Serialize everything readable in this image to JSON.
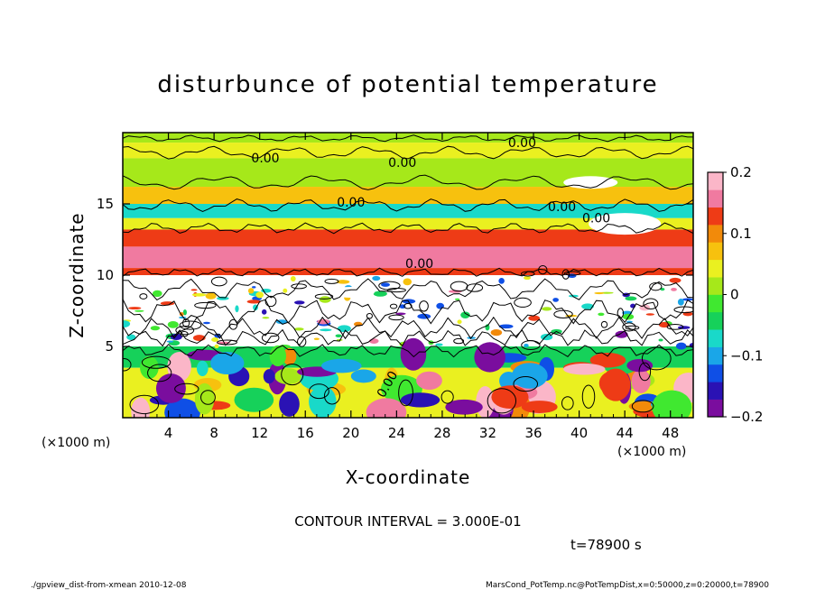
{
  "chart_data": {
    "type": "heatmap",
    "title": "disturbunce of potential temperature",
    "xlabel": "X-coordinate",
    "ylabel": "Z-coordinate",
    "x_unit": "(×1000 m)",
    "y_unit": "(×1000 m)",
    "xlim": [
      0,
      50
    ],
    "ylim": [
      0,
      20
    ],
    "x_ticks": [
      4,
      8,
      12,
      16,
      20,
      24,
      28,
      32,
      36,
      40,
      44,
      48
    ],
    "y_ticks": [
      5,
      10,
      15
    ],
    "colorbar": {
      "min": -0.2,
      "max": 0.2,
      "tick_values": [
        0.2,
        0.1,
        0,
        -0.1,
        -0.2
      ],
      "tick_labels": [
        "0.2",
        "0.1",
        "0",
        "−0.1",
        "−0.2"
      ],
      "colors": [
        "#7a0d9e",
        "#2a12b4",
        "#0f4fe6",
        "#1aa6e8",
        "#19d9c9",
        "#16d15a",
        "#40e830",
        "#a6e81a",
        "#eaf020",
        "#f7c10e",
        "#f28a0a",
        "#ee3b16",
        "#f07aa0",
        "#fbb6c8"
      ]
    },
    "contour_interval_label": "CONTOUR INTERVAL = 3.000E-01",
    "contour_labels": [
      "0.00",
      "0.00",
      "0.00",
      "0.00",
      "0.00",
      "0.00",
      "0.00",
      "0.00"
    ],
    "time_label": "t=78900 s"
  },
  "footer": {
    "left": "./gpview_dist-from-xmean   2010-12-08",
    "right": "MarsCond_PotTemp.nc@PotTempDist,x=0:50000,z=0:20000,t=78900"
  }
}
